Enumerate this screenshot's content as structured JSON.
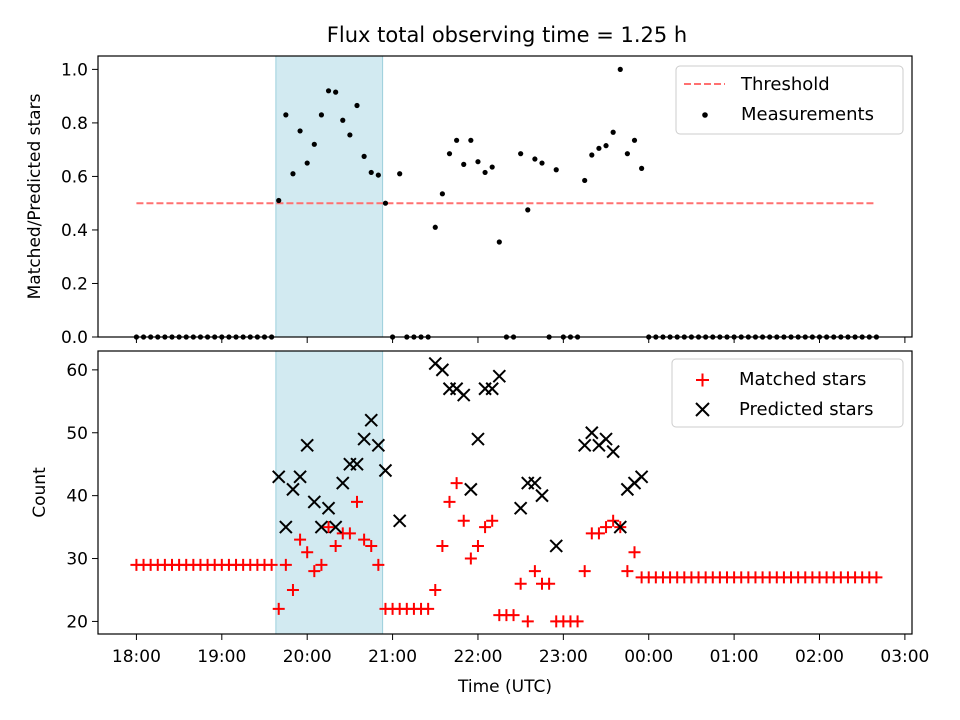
{
  "chart_data": [
    {
      "type": "scatter",
      "title": "Flux total observing time = 1.25 h",
      "xlabel": "",
      "ylabel": "Matched/Predicted stars",
      "xlim": [
        "17:33",
        "03:05"
      ],
      "ylim": [
        0,
        1.05
      ],
      "yticks": [
        0.0,
        0.2,
        0.4,
        0.6,
        0.8,
        1.0
      ],
      "ytick_labels": [
        "0.0",
        "0.2",
        "0.4",
        "0.6",
        "0.8",
        "1.0"
      ],
      "shaded_span": [
        "19:38",
        "20:53"
      ],
      "shade_color": "#add8e6",
      "legend_position": "upper right",
      "threshold": {
        "name": "Threshold",
        "y": 0.5,
        "x_range": [
          "18:00",
          "02:40"
        ],
        "color": "#ff7070",
        "style": "dashed"
      },
      "series": [
        {
          "name": "Measurements",
          "color": "#000000",
          "marker": "dot",
          "x": [
            "18:00",
            "18:05",
            "18:10",
            "18:15",
            "18:20",
            "18:25",
            "18:30",
            "18:35",
            "18:40",
            "18:45",
            "18:50",
            "18:55",
            "19:00",
            "19:05",
            "19:10",
            "19:15",
            "19:20",
            "19:25",
            "19:30",
            "19:35",
            "19:40",
            "19:45",
            "19:50",
            "19:55",
            "20:00",
            "20:05",
            "20:10",
            "20:15",
            "20:20",
            "20:25",
            "20:30",
            "20:35",
            "20:40",
            "20:45",
            "20:50",
            "20:55",
            "21:00",
            "21:05",
            "21:10",
            "21:15",
            "21:20",
            "21:25",
            "21:30",
            "21:35",
            "21:40",
            "21:45",
            "21:50",
            "21:55",
            "22:00",
            "22:05",
            "22:10",
            "22:15",
            "22:20",
            "22:25",
            "22:30",
            "22:35",
            "22:40",
            "22:45",
            "22:50",
            "22:55",
            "23:00",
            "23:05",
            "23:10",
            "23:15",
            "23:20",
            "23:25",
            "23:30",
            "23:35",
            "23:40",
            "23:45",
            "23:50",
            "23:55",
            "00:00",
            "00:05",
            "00:10",
            "00:15",
            "00:20",
            "00:25",
            "00:30",
            "00:35",
            "00:40",
            "00:45",
            "00:50",
            "00:55",
            "01:00",
            "01:05",
            "01:10",
            "01:15",
            "01:20",
            "01:25",
            "01:30",
            "01:35",
            "01:40",
            "01:45",
            "01:50",
            "01:55",
            "02:00",
            "02:05",
            "02:10",
            "02:15",
            "02:20",
            "02:25",
            "02:30",
            "02:35",
            "02:40"
          ],
          "y": [
            0,
            0,
            0,
            0,
            0,
            0,
            0,
            0,
            0,
            0,
            0,
            0,
            0,
            0,
            0,
            0,
            0,
            0,
            0,
            0,
            0.51,
            0.83,
            0.61,
            0.77,
            0.65,
            0.72,
            0.83,
            0.92,
            0.915,
            0.81,
            0.755,
            0.865,
            0.675,
            0.615,
            0.605,
            0.5,
            0,
            0.61,
            0,
            0,
            0,
            0,
            0.41,
            0.535,
            0.685,
            0.735,
            0.645,
            0.735,
            0.655,
            0.615,
            0.635,
            0.355,
            0,
            0,
            0.685,
            0.475,
            0.665,
            0.65,
            0,
            0.625,
            0,
            0,
            0,
            0.585,
            0.68,
            0.705,
            0.715,
            0.765,
            1.0,
            0.685,
            0.735,
            0.63,
            0,
            0,
            0,
            0,
            0,
            0,
            0,
            0,
            0,
            0,
            0,
            0,
            0,
            0,
            0,
            0,
            0,
            0,
            0,
            0,
            0,
            0,
            0,
            0,
            0,
            0,
            0,
            0,
            0,
            0,
            0,
            0,
            0
          ]
        }
      ]
    },
    {
      "type": "scatter",
      "title": "",
      "xlabel": "Time (UTC)",
      "ylabel": "Count",
      "xlim": [
        "17:33",
        "03:05"
      ],
      "ylim": [
        18,
        63
      ],
      "yticks": [
        20,
        30,
        40,
        50,
        60
      ],
      "ytick_labels": [
        "20",
        "30",
        "40",
        "50",
        "60"
      ],
      "xtick_labels": [
        "18:00",
        "19:00",
        "20:00",
        "21:00",
        "22:00",
        "23:00",
        "00:00",
        "01:00",
        "02:00",
        "03:00"
      ],
      "shaded_span": [
        "19:38",
        "20:53"
      ],
      "shade_color": "#add8e6",
      "legend_position": "upper right",
      "series": [
        {
          "name": "Matched stars",
          "color": "#ff0000",
          "marker": "plus",
          "x": [
            "18:00",
            "18:05",
            "18:10",
            "18:15",
            "18:20",
            "18:25",
            "18:30",
            "18:35",
            "18:40",
            "18:45",
            "18:50",
            "18:55",
            "19:00",
            "19:05",
            "19:10",
            "19:15",
            "19:20",
            "19:25",
            "19:30",
            "19:35",
            "19:40",
            "19:45",
            "19:50",
            "19:55",
            "20:00",
            "20:05",
            "20:10",
            "20:15",
            "20:20",
            "20:25",
            "20:30",
            "20:35",
            "20:40",
            "20:45",
            "20:50",
            "20:55",
            "21:00",
            "21:05",
            "21:10",
            "21:15",
            "21:20",
            "21:25",
            "21:30",
            "21:35",
            "21:40",
            "21:45",
            "21:50",
            "21:55",
            "22:00",
            "22:05",
            "22:10",
            "22:15",
            "22:20",
            "22:25",
            "22:30",
            "22:35",
            "22:40",
            "22:45",
            "22:50",
            "22:55",
            "23:00",
            "23:05",
            "23:10",
            "23:15",
            "23:20",
            "23:25",
            "23:30",
            "23:35",
            "23:40",
            "23:45",
            "23:50",
            "23:55",
            "00:00",
            "00:05",
            "00:10",
            "00:15",
            "00:20",
            "00:25",
            "00:30",
            "00:35",
            "00:40",
            "00:45",
            "00:50",
            "00:55",
            "01:00",
            "01:05",
            "01:10",
            "01:15",
            "01:20",
            "01:25",
            "01:30",
            "01:35",
            "01:40",
            "01:45",
            "01:50",
            "01:55",
            "02:00",
            "02:05",
            "02:10",
            "02:15",
            "02:20",
            "02:25",
            "02:30",
            "02:35",
            "02:40"
          ],
          "y": [
            29,
            29,
            29,
            29,
            29,
            29,
            29,
            29,
            29,
            29,
            29,
            29,
            29,
            29,
            29,
            29,
            29,
            29,
            29,
            29,
            22,
            29,
            25,
            33,
            31,
            28,
            29,
            35,
            32,
            34,
            34,
            39,
            33,
            32,
            29,
            22,
            22,
            22,
            22,
            22,
            22,
            22,
            25,
            32,
            39,
            42,
            36,
            30,
            32,
            35,
            36,
            21,
            21,
            21,
            26,
            20,
            28,
            26,
            26,
            20,
            20,
            20,
            20,
            28,
            34,
            34,
            35,
            36,
            35,
            28,
            31,
            27,
            27,
            27,
            27,
            27,
            27,
            27,
            27,
            27,
            27,
            27,
            27,
            27,
            27,
            27,
            27,
            27,
            27,
            27,
            27,
            27,
            27,
            27,
            27,
            27,
            27,
            27,
            27,
            27,
            27,
            27,
            27,
            27,
            27
          ]
        },
        {
          "name": "Predicted stars",
          "color": "#000000",
          "marker": "x",
          "x": [
            "19:40",
            "19:45",
            "19:50",
            "19:55",
            "20:00",
            "20:05",
            "20:10",
            "20:15",
            "20:20",
            "20:25",
            "20:30",
            "20:35",
            "20:40",
            "20:45",
            "20:50",
            "20:55",
            "21:05",
            "21:30",
            "21:35",
            "21:40",
            "21:45",
            "21:50",
            "21:55",
            "22:00",
            "22:05",
            "22:10",
            "22:15",
            "22:30",
            "22:35",
            "22:40",
            "22:45",
            "22:55",
            "23:15",
            "23:20",
            "23:25",
            "23:30",
            "23:35",
            "23:40",
            "23:45",
            "23:50",
            "23:55"
          ],
          "y": [
            43,
            35,
            41,
            43,
            48,
            39,
            35,
            38,
            35,
            42,
            45,
            45,
            49,
            52,
            48,
            44,
            36,
            61,
            60,
            57,
            57,
            56,
            41,
            49,
            57,
            57,
            59,
            38,
            42,
            42,
            40,
            32,
            48,
            50,
            48,
            49,
            47,
            35,
            41,
            42,
            43
          ]
        }
      ]
    }
  ]
}
